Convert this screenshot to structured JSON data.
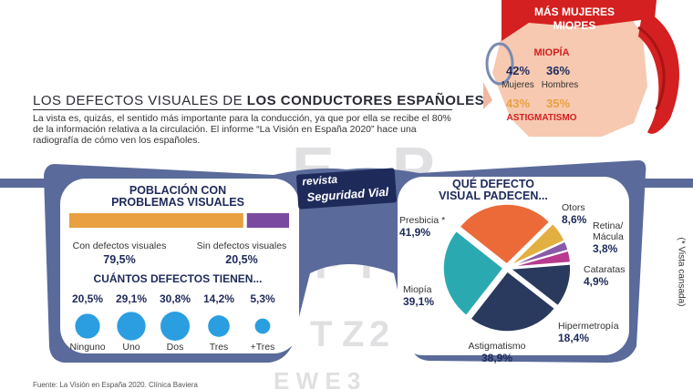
{
  "title_light": "LOS DEFECTOS VISUALES DE ",
  "title_bold": "LOS CONDUCTORES ESPAÑOLES",
  "intro": "La vista es, quizás, el sentido más importante para la conducción, ya que por ella se recibe el 80% de la información relativa a la circulación. El informe “La Visión en España 2020” hace una radiografía de cómo ven los españoles.",
  "logo": {
    "line1": "revista",
    "line2": "Seguridad Vial"
  },
  "girl": {
    "title_line1": "MÁS MUJERES",
    "title_line2": "MIOPES",
    "miopia_label": "MIOPÍA",
    "mujeres_pct": "42%",
    "hombres_pct": "36%",
    "mujeres_label": "Mujeres",
    "hombres_label": "Hombres",
    "ast_mujeres_pct": "43%",
    "ast_hombres_pct": "35%",
    "astigmatismo_label": "ASTIGMATISMO"
  },
  "left_panel": {
    "header_line1": "POBLACIÓN CON",
    "header_line2": "PROBLEMAS VISUALES",
    "with_label": "Con defectos visuales",
    "with_value": "79,5%",
    "without_label": "Sin defectos visuales",
    "without_value": "20,5%",
    "count_header": "CUÁNTOS  DEFECTOS TIENEN..."
  },
  "right_panel": {
    "header_line1": "QUÉ DEFECTO",
    "header_line2": "VISUAL PADECEN..."
  },
  "vertical_note": "(* Vista cansada)",
  "footer": "Fuente: La Visión en España 2020. Clínica Baviera",
  "colors": {
    "frame": "#5a6a9a",
    "dark": "#1e2a5a",
    "orange": "#e8a040",
    "purple": "#7a4aa0",
    "bubble": "#2a9ee0",
    "girl_red": "#d42020",
    "skin": "#f6c9b0"
  },
  "chart_data": [
    {
      "type": "bar",
      "title": "POBLACIÓN CON PROBLEMAS VISUALES",
      "categories": [
        "Con defectos visuales",
        "Sin defectos visuales"
      ],
      "values": [
        79.5,
        20.5
      ],
      "labels": [
        "79,5%",
        "20,5%"
      ]
    },
    {
      "type": "scatter",
      "title": "CUÁNTOS  DEFECTOS TIENEN...",
      "categories": [
        "Ninguno",
        "Uno",
        "Dos",
        "Tres",
        "+Tres"
      ],
      "values": [
        20.5,
        29.1,
        30.8,
        14.2,
        5.3
      ],
      "labels": [
        "20,5%",
        "29,1%",
        "30,8%",
        "14,2%",
        "5,3%"
      ]
    },
    {
      "type": "pie",
      "title": "QUÉ DEFECTO VISUAL PADECEN...",
      "categories": [
        "Presbicia *",
        "Otors",
        "Retina/ Mácula",
        "Cataratas",
        "Hipermetropía",
        "Astigmatismo",
        "Miopía"
      ],
      "values": [
        41.9,
        8.6,
        3.8,
        4.9,
        18.4,
        38.9,
        39.1
      ],
      "labels": [
        "41,9%",
        "8,6%",
        "3,8%",
        "4,9%",
        "18,4%",
        "38,9%",
        "39,1%"
      ],
      "colors": [
        "#ec6a38",
        "#e2b040",
        "#8a5aa8",
        "#b83a90",
        "#2a3a5e",
        "#2a3a5e",
        "#2aaab0"
      ]
    },
    {
      "type": "table",
      "title": "MÁS MUJERES MIOPES",
      "columns": [
        "Mujeres",
        "Hombres"
      ],
      "rows": [
        {
          "name": "MIOPÍA",
          "values": [
            42,
            36
          ]
        },
        {
          "name": "ASTIGMATISMO",
          "values": [
            43,
            35
          ]
        }
      ]
    }
  ]
}
